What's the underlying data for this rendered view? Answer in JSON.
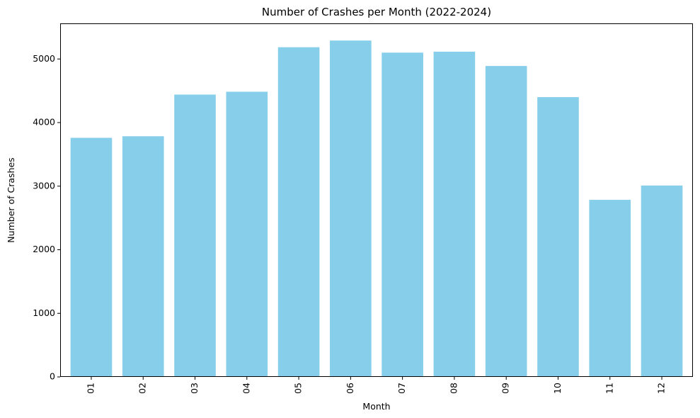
{
  "chart_data": {
    "type": "bar",
    "title": "Number of Crashes per Month (2022-2024)",
    "xlabel": "Month",
    "ylabel": "Number of Crashes",
    "categories": [
      "01",
      "02",
      "03",
      "04",
      "05",
      "06",
      "07",
      "08",
      "09",
      "10",
      "11",
      "12"
    ],
    "values": [
      3760,
      3785,
      4440,
      4485,
      5185,
      5290,
      5100,
      5115,
      4890,
      4400,
      2785,
      3010
    ],
    "ylim": [
      0,
      5560
    ],
    "yticks": [
      0,
      1000,
      2000,
      3000,
      4000,
      5000
    ],
    "bar_color": "#87ceeb",
    "grid": false,
    "legend": false,
    "xtick_rotation": 90
  }
}
